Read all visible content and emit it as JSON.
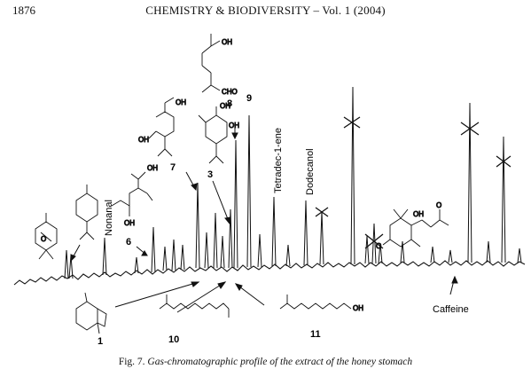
{
  "header": {
    "page_number": "1876",
    "journal": "CHEMISTRY & BIODIVERSITY – Vol. 1 (2004)"
  },
  "figure": {
    "caption_label": "Fig. 7.",
    "caption_text": "Gas-chromatographic profile of the extract of the honey stomach",
    "peak_labels": {
      "nonanal": "Nonanal",
      "tetradecene": "Tetradec-1-ene",
      "dodecanol": "Dodecanol",
      "caffeine": "Caffeine"
    },
    "compound_numbers": {
      "c1": "1",
      "c3": "3",
      "c6": "6",
      "c7": "7",
      "c8": "8",
      "c9": "9",
      "c10": "10",
      "c11": "11"
    },
    "structure_labels": {
      "oh": "OH",
      "cho": "CHO",
      "o": "O"
    }
  }
}
